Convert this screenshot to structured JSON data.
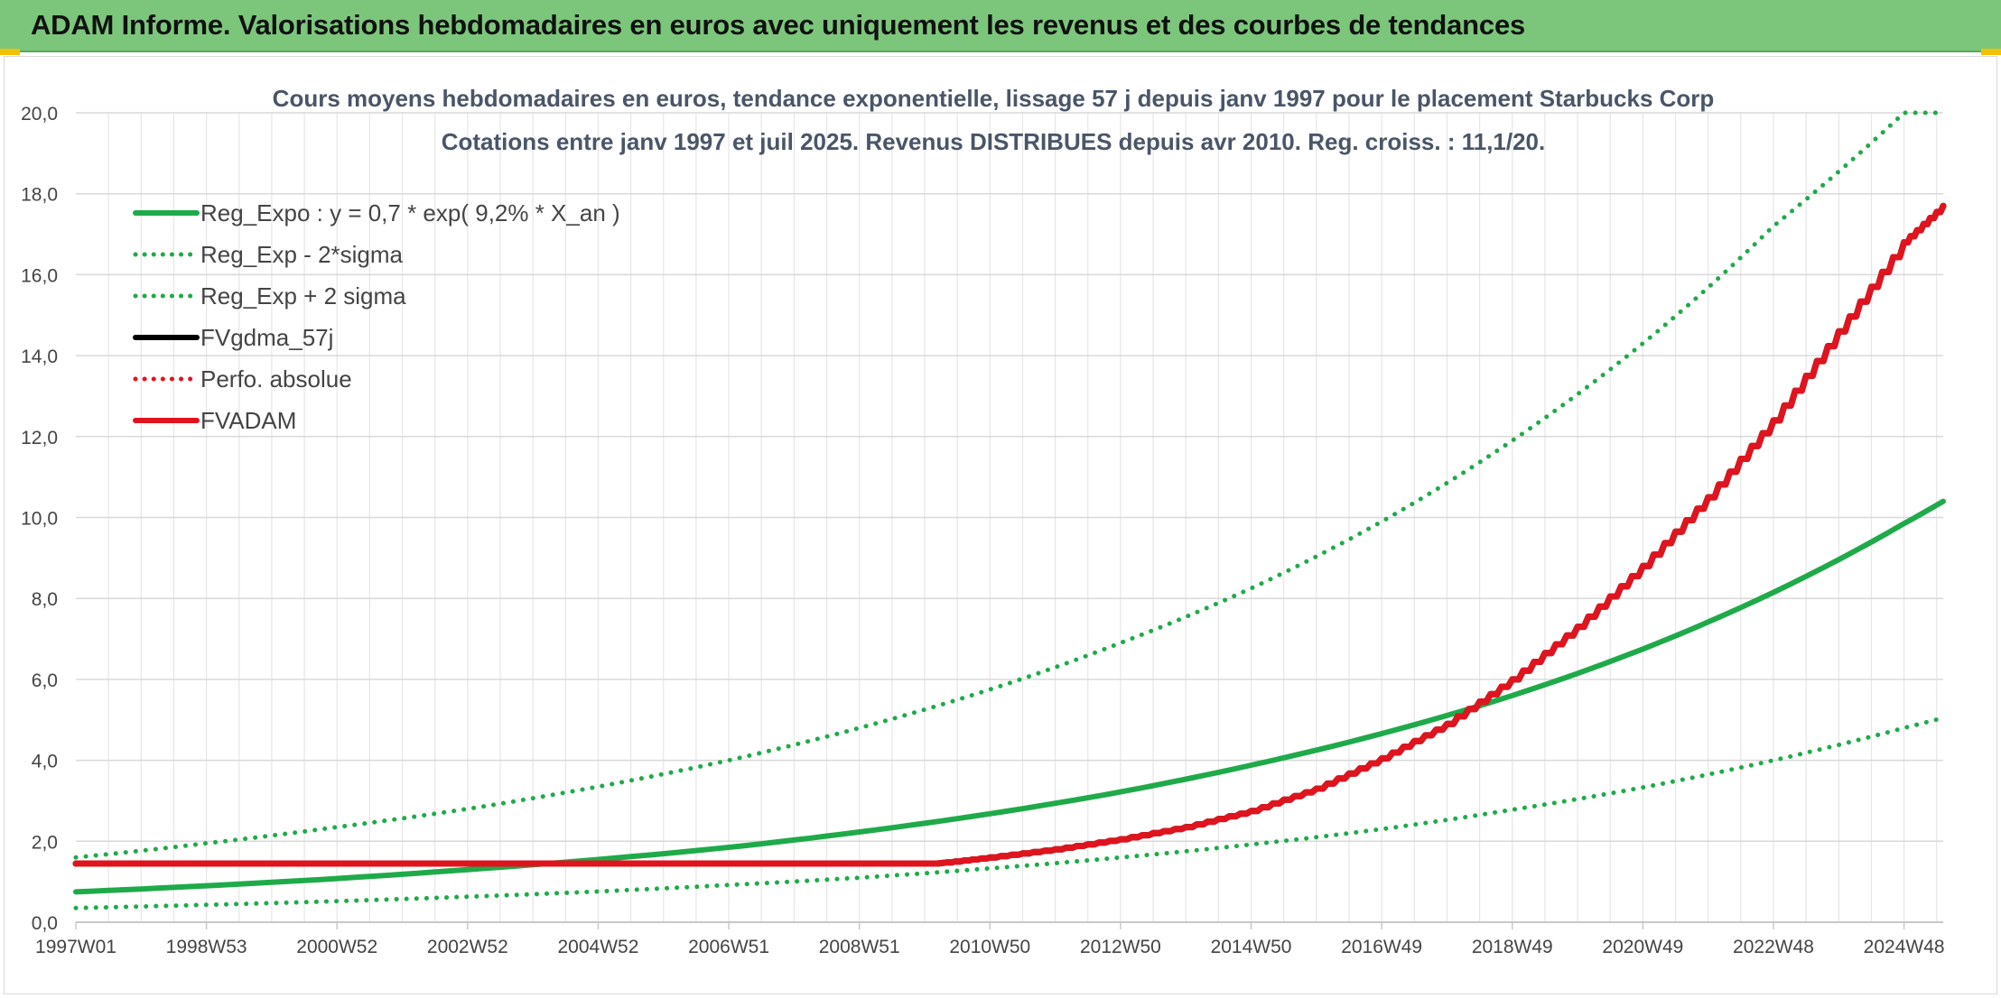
{
  "banner": {
    "title": "ADAM Informe. Valorisations hebdomadaires en euros avec uniquement les revenus et des courbes de tendances"
  },
  "chart_data": {
    "type": "line",
    "title": "Cours moyens hebdomadaires en euros, tendance exponentielle, lissage 57 j depuis janv 1997 pour le placement Starbucks Corp",
    "subtitle": "Cotations entre janv 1997 et juil 2025. Revenus DISTRIBUES depuis avr 2010. Reg. croiss. : 11,1/20.",
    "xlabel": "",
    "ylabel": "",
    "x_range": [
      1997.0,
      2025.6
    ],
    "ylim": [
      0,
      20
    ],
    "y_ticks": [
      "0,0",
      "2,0",
      "4,0",
      "6,0",
      "8,0",
      "10,0",
      "12,0",
      "14,0",
      "16,0",
      "18,0",
      "20,0"
    ],
    "x_ticks": [
      {
        "label": "1997W01",
        "x": 1997.0
      },
      {
        "label": "1998W53",
        "x": 1999.0
      },
      {
        "label": "2000W52",
        "x": 2001.0
      },
      {
        "label": "2002W52",
        "x": 2003.0
      },
      {
        "label": "2004W52",
        "x": 2005.0
      },
      {
        "label": "2006W51",
        "x": 2007.0
      },
      {
        "label": "2008W51",
        "x": 2009.0
      },
      {
        "label": "2010W50",
        "x": 2011.0
      },
      {
        "label": "2012W50",
        "x": 2013.0
      },
      {
        "label": "2014W50",
        "x": 2015.0
      },
      {
        "label": "2016W49",
        "x": 2017.0
      },
      {
        "label": "2018W49",
        "x": 2019.0
      },
      {
        "label": "2020W49",
        "x": 2021.0
      },
      {
        "label": "2022W48",
        "x": 2023.0
      },
      {
        "label": "2024W48",
        "x": 2025.0
      }
    ],
    "grid": true,
    "legend_position": "top-left",
    "series": [
      {
        "name": "Reg_Expo : y = 0,7 * exp( 9,2% *  X_an )",
        "color": "#1faa4a",
        "style": "solid",
        "width": 6,
        "x": [
          1997,
          1999,
          2001,
          2003,
          2005,
          2007,
          2009,
          2011,
          2013,
          2015,
          2017,
          2019,
          2021,
          2023,
          2025,
          2025.6
        ],
        "y": [
          0.75,
          0.9,
          1.08,
          1.3,
          1.55,
          1.85,
          2.23,
          2.68,
          3.22,
          3.88,
          4.66,
          5.6,
          6.75,
          8.15,
          9.85,
          10.4
        ]
      },
      {
        "name": "Reg_Exp - 2*sigma",
        "color": "#1faa4a",
        "style": "dotted",
        "width": 5,
        "x": [
          1997,
          1999,
          2001,
          2003,
          2005,
          2007,
          2009,
          2011,
          2013,
          2015,
          2017,
          2019,
          2021,
          2023,
          2025,
          2025.6
        ],
        "y": [
          0.35,
          0.43,
          0.52,
          0.63,
          0.76,
          0.92,
          1.1,
          1.33,
          1.6,
          1.92,
          2.3,
          2.78,
          3.33,
          4.0,
          4.8,
          5.05
        ]
      },
      {
        "name": "Reg_Exp + 2 sigma",
        "color": "#1faa4a",
        "style": "dotted",
        "width": 5,
        "x": [
          1997,
          1999,
          2001,
          2003,
          2005,
          2007,
          2009,
          2011,
          2013,
          2015,
          2017,
          2019,
          2021,
          2023,
          2025,
          2025.6
        ],
        "y": [
          1.6,
          1.95,
          2.35,
          2.8,
          3.35,
          4.0,
          4.8,
          5.75,
          6.9,
          8.25,
          9.9,
          11.9,
          14.3,
          17.2,
          20.0,
          20.0
        ]
      },
      {
        "name": "FVgdma_57j",
        "color": "#000000",
        "style": "solid",
        "width": 7,
        "x": [
          1997,
          2000,
          2003,
          2006,
          2009,
          2010.2,
          2011,
          2012,
          2013,
          2014,
          2015,
          2016,
          2017,
          2018,
          2019,
          2020,
          2021,
          2022,
          2023,
          2024,
          2025,
          2025.6
        ],
        "y": [
          1.45,
          1.45,
          1.45,
          1.45,
          1.45,
          1.45,
          1.6,
          1.8,
          2.05,
          2.35,
          2.75,
          3.3,
          4.05,
          4.9,
          6.0,
          7.3,
          8.8,
          10.5,
          12.4,
          14.6,
          16.8,
          17.7
        ]
      },
      {
        "name": "Perfo. absolue",
        "color": "#e0141e",
        "style": "dotted",
        "width": 3,
        "x": [],
        "y": []
      },
      {
        "name": "FVADAM",
        "color": "#e0141e",
        "style": "solid",
        "width": 7,
        "x": [
          1997,
          2000,
          2003,
          2006,
          2009,
          2010.2,
          2011,
          2012,
          2013,
          2014,
          2015,
          2016,
          2017,
          2018,
          2019,
          2020,
          2021,
          2022,
          2023,
          2024,
          2025,
          2025.6
        ],
        "y": [
          1.45,
          1.45,
          1.45,
          1.45,
          1.45,
          1.45,
          1.6,
          1.8,
          2.05,
          2.35,
          2.75,
          3.3,
          4.05,
          4.9,
          6.0,
          7.3,
          8.8,
          10.5,
          12.4,
          14.6,
          16.8,
          17.7
        ]
      }
    ]
  }
}
